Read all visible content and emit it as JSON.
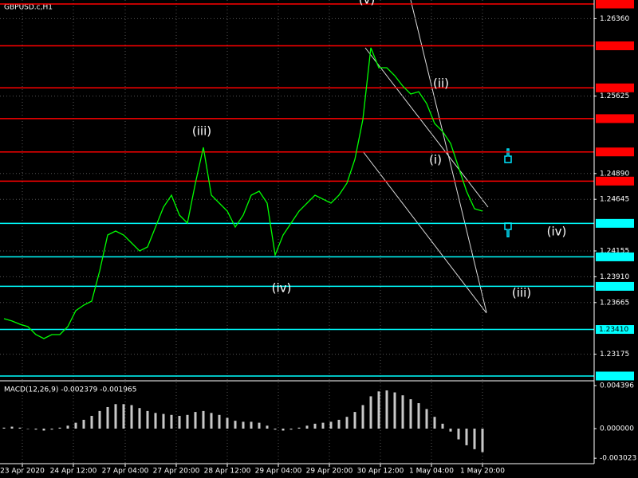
{
  "chart_data": [
    {
      "type": "line",
      "title": "GBPUSD.c,H1",
      "color": "#00ff00",
      "values": [
        1.23512,
        1.2349,
        1.23459,
        1.23437,
        1.23361,
        1.23323,
        1.23361,
        1.23361,
        1.23437,
        1.23588,
        1.23641,
        1.23679,
        1.23966,
        1.24306,
        1.24344,
        1.24306,
        1.24231,
        1.24155,
        1.24193,
        1.24382,
        1.24571,
        1.24684,
        1.24495,
        1.2442,
        1.24798,
        1.25138,
        1.24684,
        1.24609,
        1.24533,
        1.24382,
        1.24495,
        1.24684,
        1.24722,
        1.24609,
        1.24117,
        1.24306,
        1.2442,
        1.24533,
        1.24609,
        1.24684,
        1.24647,
        1.24609,
        1.24684,
        1.24798,
        1.25025,
        1.25403,
        1.26083,
        1.25894,
        1.25894,
        1.25819,
        1.2572,
        1.25645,
        1.25667,
        1.25554,
        1.25365,
        1.25289,
        1.25176,
        1.24949,
        1.24722,
        1.24556,
        1.24533
      ],
      "xlim": [
        -0.5,
        74
      ],
      "ylim": [
        1.2293,
        1.26537
      ],
      "xticks": [
        {
          "value": 2.3,
          "label": "23 Apr 2020"
        },
        {
          "value": 8.7,
          "label": "24 Apr 12:00"
        },
        {
          "value": 15.2,
          "label": "27 Apr 04:00"
        },
        {
          "value": 21.6,
          "label": "27 Apr 20:00"
        },
        {
          "value": 28,
          "label": "28 Apr 12:00"
        },
        {
          "value": 34.4,
          "label": "29 Apr 04:00"
        },
        {
          "value": 40.8,
          "label": "29 Apr 20:00"
        },
        {
          "value": 47.2,
          "label": "30 Apr 12:00"
        },
        {
          "value": 53.6,
          "label": "1 May 04:00"
        },
        {
          "value": 60,
          "label": "1 May 20:00"
        }
      ],
      "yticks": [
        {
          "value": 1.2636,
          "label": "1.26360"
        },
        {
          "value": 1.25625,
          "label": "1.25625"
        },
        {
          "value": 1.2489,
          "label": "1.24890"
        },
        {
          "value": 1.24645,
          "label": "1.24645"
        },
        {
          "value": 1.24155,
          "label": "1.24155"
        },
        {
          "value": 1.2391,
          "label": "1.23910"
        },
        {
          "value": 1.23665,
          "label": "1.23665"
        },
        {
          "value": 1.23175,
          "label": "1.23175"
        }
      ],
      "hlines": [
        {
          "value": 1.26499,
          "color": "#ff0000"
        },
        {
          "value": 1.26102,
          "color": "#ff0000"
        },
        {
          "value": 1.25703,
          "color": "#ff0000"
        },
        {
          "value": 1.25411,
          "color": "#ff0000"
        },
        {
          "value": 1.25095,
          "color": "#ff0000"
        },
        {
          "value": 1.24818,
          "color": "#ff0000"
        },
        {
          "value": 1.24417,
          "color": "#00ffff"
        },
        {
          "value": 1.24099,
          "color": "#00ffff"
        },
        {
          "value": 1.23819,
          "color": "#00ffff"
        },
        {
          "value": 1.2341,
          "label": "1.23410",
          "color": "#00ffff"
        },
        {
          "value": 1.22968,
          "color": "#00ffff"
        }
      ],
      "annotations": [
        "(v)",
        "(ii)",
        "(iii)",
        "(i)",
        "(iv)",
        "(iv)",
        "(iii)"
      ],
      "grid": true
    },
    {
      "type": "bar",
      "title": "MACD(12,26,9) -0.002379 -0.001965",
      "color": "#c8c8c8",
      "values": [
        0.0001,
        0.0002,
        0.0001,
        0,
        -0.0001,
        -0.0002,
        -0.0001,
        0.0001,
        0.0003,
        0.0006,
        0.0009,
        0.0013,
        0.0018,
        0.0022,
        0.0025,
        0.0025,
        0.0024,
        0.0021,
        0.0018,
        0.0016,
        0.0015,
        0.0014,
        0.0013,
        0.0014,
        0.0017,
        0.0018,
        0.0016,
        0.0014,
        0.0011,
        0.0008,
        0.0007,
        0.0007,
        0.0006,
        0.0003,
        -0.0001,
        -0.0002,
        -0.0001,
        0.0001,
        0.0003,
        0.0005,
        0.0006,
        0.0007,
        0.0009,
        0.0012,
        0.0017,
        0.0024,
        0.0033,
        0.0038,
        0.0039,
        0.0037,
        0.0034,
        0.003,
        0.0026,
        0.002,
        0.0012,
        0.0005,
        -0.0003,
        -0.0011,
        -0.0017,
        -0.0021,
        -0.0024
      ],
      "ylim": [
        -0.00358,
        0.00472
      ],
      "yticks": [
        {
          "value": 0.004396,
          "label": "0.004396"
        },
        {
          "value": 0,
          "label": "0.000000"
        },
        {
          "value": -0.003023,
          "label": "-0.003023"
        }
      ]
    }
  ]
}
